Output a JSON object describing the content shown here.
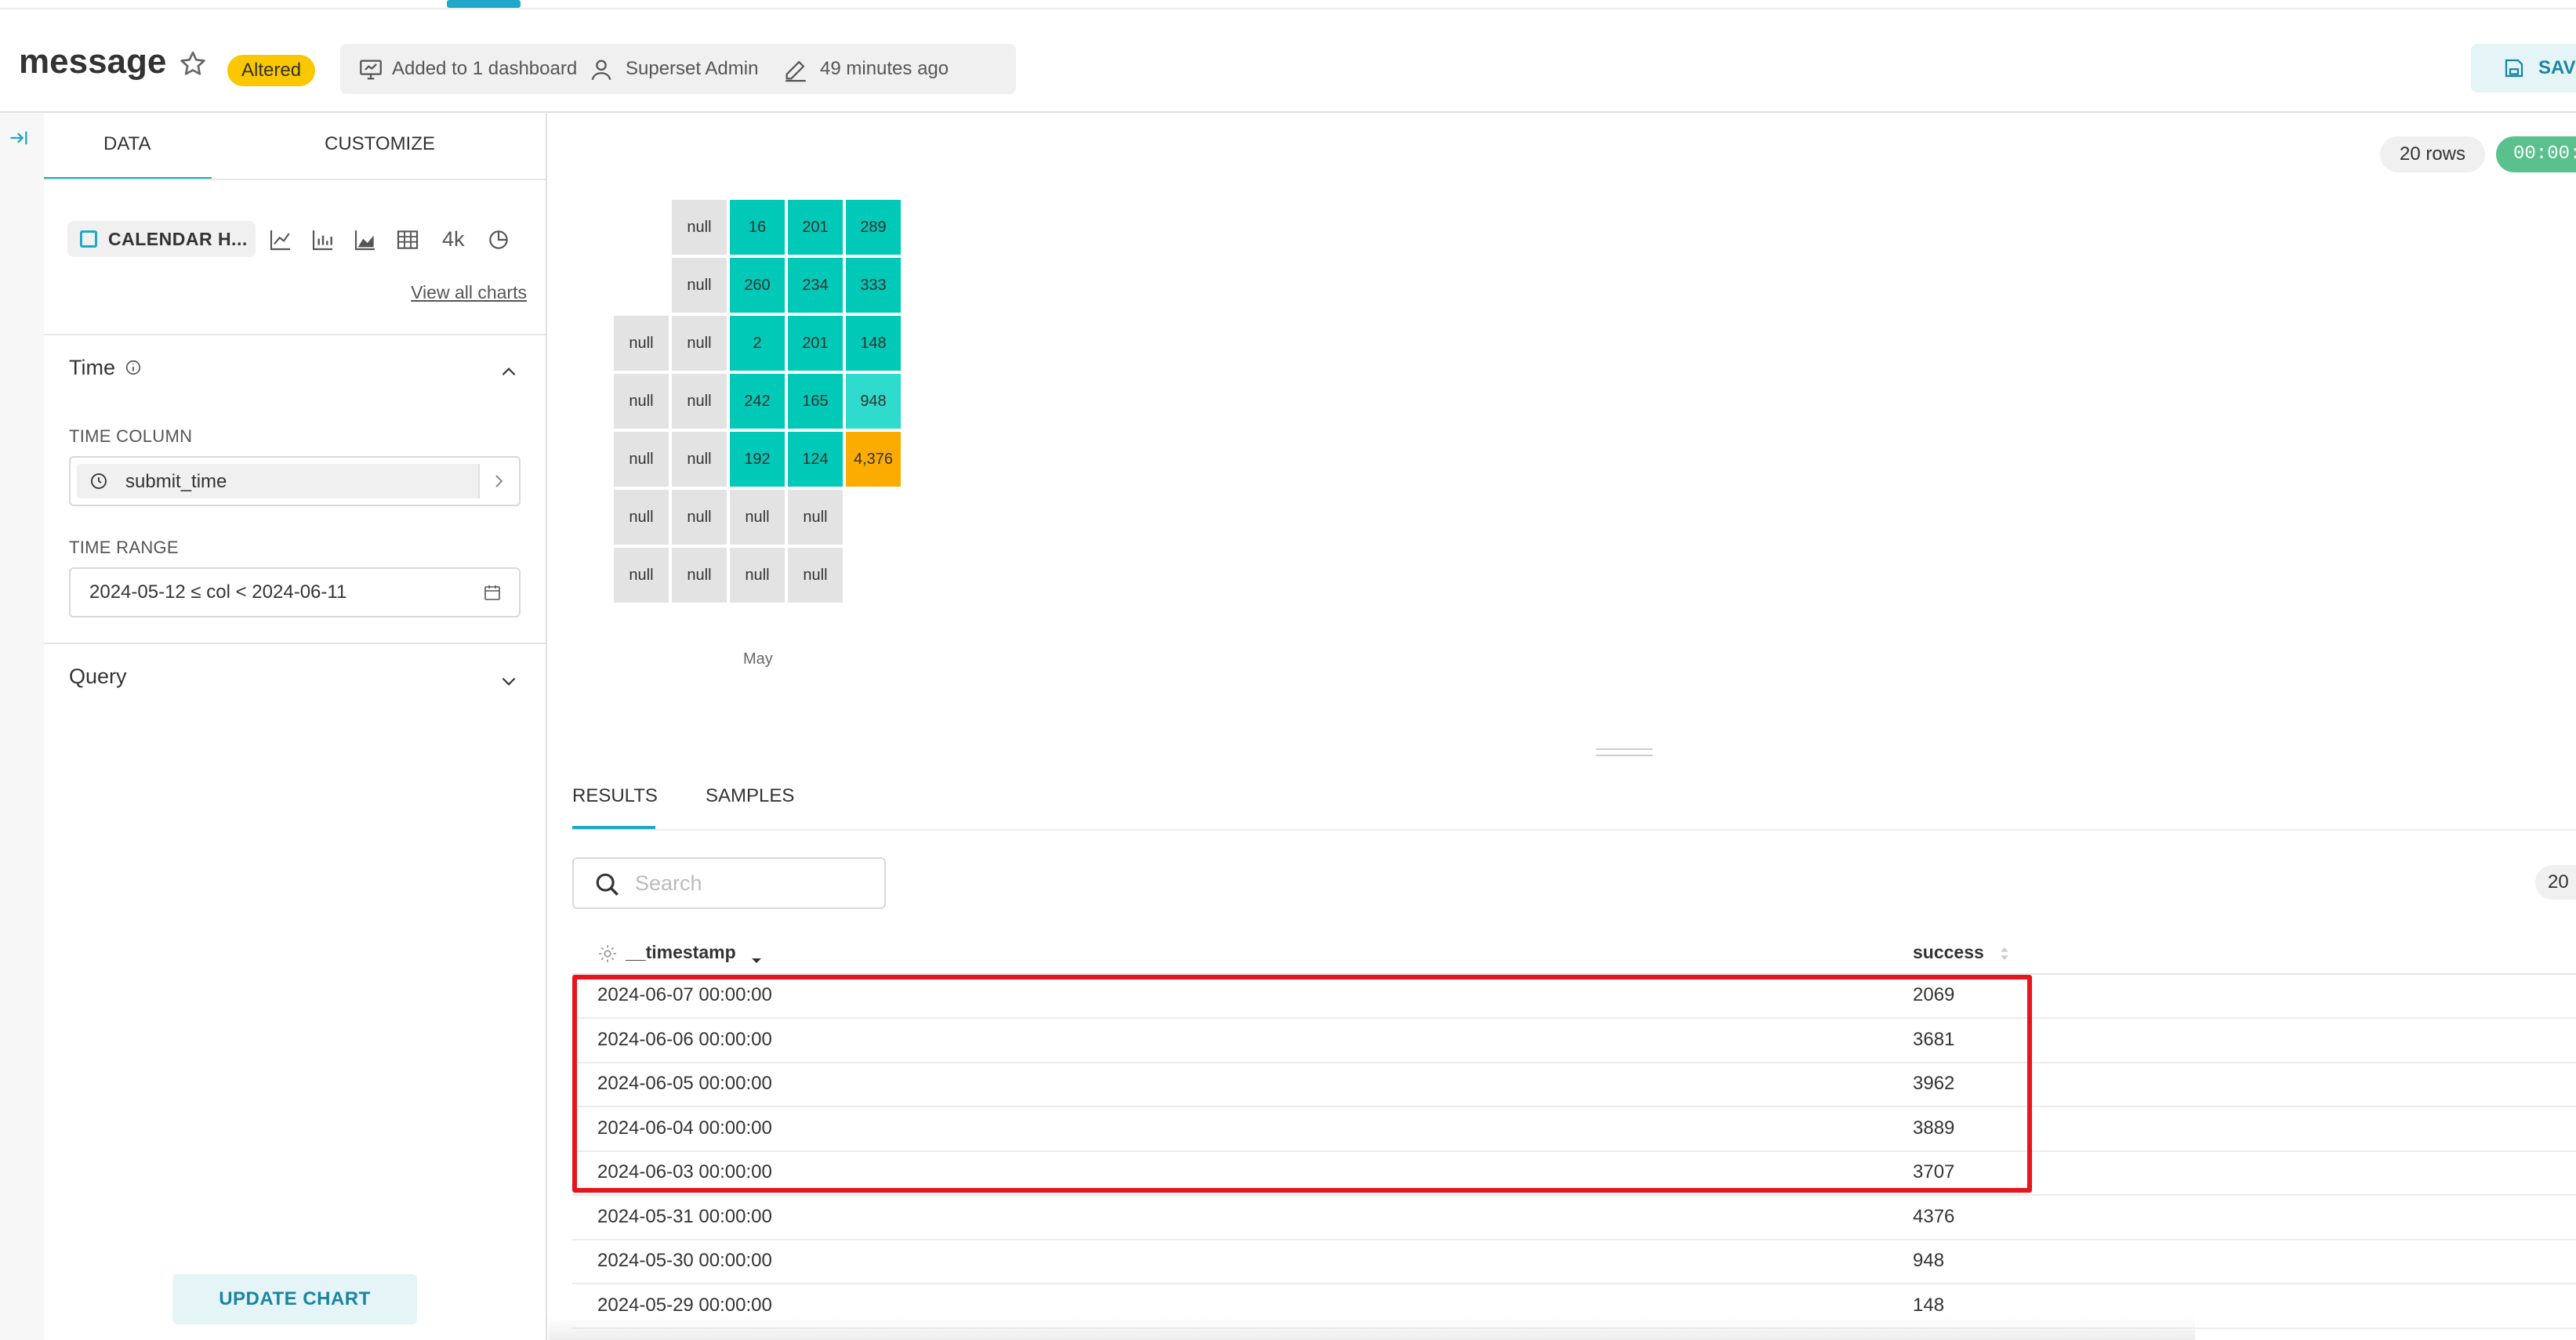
{
  "header": {
    "title": "message",
    "altered_badge": "Altered",
    "dashboard_info": "Added to 1 dashboard",
    "owner": "Superset Admin",
    "modified": "49 minutes ago",
    "save_label": "SAV"
  },
  "panel": {
    "tabs": [
      "DATA",
      "CUSTOMIZE"
    ],
    "viz_type": "CALENDAR H...",
    "quick_viz": [
      "line-chart-icon",
      "bar-chart-icon",
      "area-chart-icon",
      "table-icon",
      "big-number-icon",
      "pie-chart-icon"
    ],
    "big_number_label": "4k",
    "view_all": "View all charts",
    "time_section": "Time",
    "time_column_label": "TIME COLUMN",
    "time_column_value": "submit_time",
    "time_range_label": "TIME RANGE",
    "time_range_value": "2024-05-12 ≤ col < 2024-06-11",
    "query_section": "Query",
    "update_button": "UPDATE CHART"
  },
  "chart_header": {
    "rows": "20 rows",
    "timer": "00:00:"
  },
  "chart_data": {
    "type": "heatmap",
    "month_label": "May",
    "columns": [
      [
        "",
        "",
        "null",
        "null",
        "null",
        "null",
        "null"
      ],
      [
        "null",
        "null",
        "null",
        "null",
        "null",
        "null",
        "null"
      ],
      [
        "16",
        "260",
        "2",
        "242",
        "192",
        "null",
        "null"
      ],
      [
        "201",
        "234",
        "201",
        "165",
        "124",
        "null",
        "null"
      ],
      [
        "289",
        "333",
        "148",
        "948",
        "4,376",
        "",
        ""
      ]
    ],
    "colors": {
      "null": "#e3e3e3",
      "low": "#00c9b7",
      "mid": "#2edbcc",
      "high": "#fcab00"
    }
  },
  "results": {
    "tabs": [
      "RESULTS",
      "SAMPLES"
    ],
    "search_placeholder": "Search",
    "count_pill": "20",
    "columns": [
      "__timestamp",
      "success"
    ],
    "rows": [
      [
        "2024-06-07 00:00:00",
        "2069"
      ],
      [
        "2024-06-06 00:00:00",
        "3681"
      ],
      [
        "2024-06-05 00:00:00",
        "3962"
      ],
      [
        "2024-06-04 00:00:00",
        "3889"
      ],
      [
        "2024-06-03 00:00:00",
        "3707"
      ],
      [
        "2024-05-31 00:00:00",
        "4376"
      ],
      [
        "2024-05-30 00:00:00",
        "948"
      ],
      [
        "2024-05-29 00:00:00",
        "148"
      ]
    ],
    "highlight_color": "#e8141d"
  }
}
